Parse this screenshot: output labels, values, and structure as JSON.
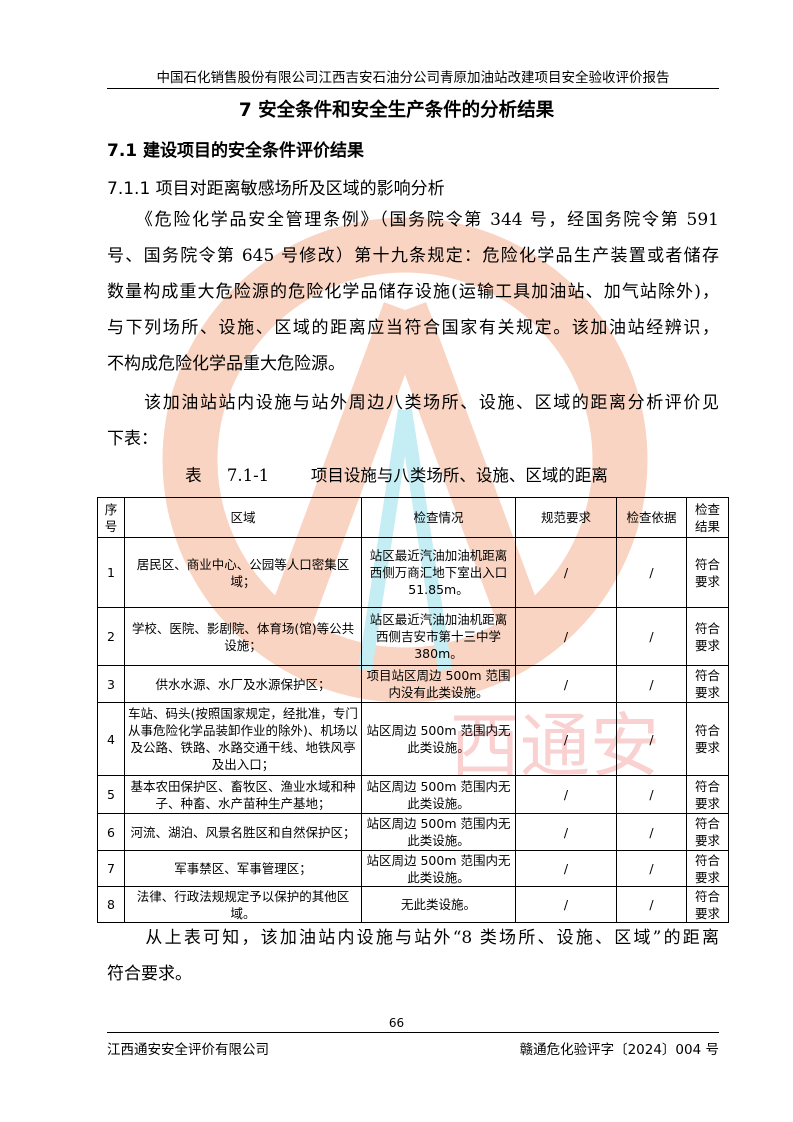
{
  "header": {
    "text": "中国石化销售股份有限公司江西吉安石油分公司青原加油站改建项目安全验收评价报告"
  },
  "title": "7 安全条件和安全生产条件的分析结果",
  "section": "7.1 建设项目的安全条件评价结果",
  "subsection": "7.1.1 项目对距离敏感场所及区域的影响分析",
  "paragraph1": [
    "　　《危险化学品安全管理条例》（国务院令第 344 号，经国务院令第 591",
    "号、国务院令第 645 号修改）第十九条规定：危险化学品生产装置或者储存",
    "数量构成重大危险源的危险化学品储存设施(运输工具加油站、加气站除外)，",
    "与下列场所、设施、区域的距离应当符合国家有关规定。该加油站经辨识，",
    "不构成危险化学品重大危险源。"
  ],
  "paragraph2": [
    "　　该加油站站内设施与站外周边八类场所、设施、区域的距离分析评价见",
    "下表："
  ],
  "table_caption": "表 7.1-1　 项目设施与八类场所、设施、区域的距离",
  "table": {
    "headers": [
      "序号",
      "区域",
      "检查情况",
      "规范要求",
      "检查依据",
      "检查结果"
    ],
    "rows": [
      [
        "1",
        "居民区、商业中心、公园等人口密集区域；",
        "站区最近汽油加油机距离西侧万商汇地下室出入口 51.85m。",
        "/",
        "/",
        "符合要求"
      ],
      [
        "2",
        "学校、医院、影剧院、体育场(馆)等公共设施；",
        "站区最近汽油加油机距离西侧吉安市第十三中学 380m。",
        "/",
        "/",
        "符合要求"
      ],
      [
        "3",
        "供水水源、水厂及水源保护区；",
        "项目站区周边 500m 范围内没有此类设施。",
        "/",
        "/",
        "符合要求"
      ],
      [
        "4",
        "车站、码头(按照国家规定，经批准，专门从事危险化学品装卸作业的除外)、机场以及公路、铁路、水路交通干线、地铁风亭及出入口；",
        "站区周边 500m 范围内无此类设施。",
        "/",
        "/",
        "符合要求"
      ],
      [
        "5",
        "基本农田保护区、畜牧区、渔业水域和种子、种畜、水产苗种生产基地；",
        "站区周边 500m 范围内无此类设施。",
        "/",
        "/",
        "符合要求"
      ],
      [
        "6",
        "河流、湖泊、风景名胜区和自然保护区；",
        "站区周边 500m 范围内无此类设施。",
        "/",
        "/",
        "符合要求"
      ],
      [
        "7",
        "军事禁区、军事管理区；",
        "站区周边 500m 范围内无此类设施。",
        "/",
        "/",
        "符合要求"
      ],
      [
        "8",
        "法律、行政法规规定予以保护的其他区域。",
        "无此类设施。",
        "/",
        "/",
        "符合要求"
      ]
    ]
  },
  "paragraph3": [
    "　　从上表可知，该加油站内设施与站外“8 类场所、设施、区域”的距离",
    "符合要求。"
  ],
  "watermark": {
    "text": "江西通安安全评价有限公司",
    "colors": {
      "ring": "#f5a27a",
      "text": "#f08080",
      "accent": "#7fd8e8"
    }
  },
  "footer": {
    "page": "66",
    "left": "江西通安安全评价有限公司",
    "right": "赣通危化验评字〔2024〕004 号"
  }
}
